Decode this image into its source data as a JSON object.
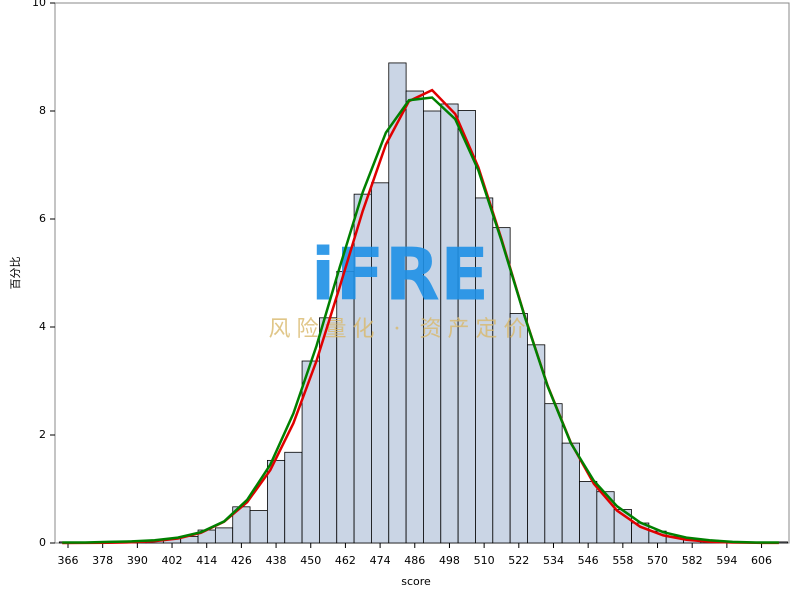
{
  "chart_data": {
    "type": "histogram",
    "xlabel": "score",
    "ylabel": "百分比",
    "watermark": "iFRE",
    "watermark_subtitle": "风险量化 · 资产定价",
    "bins": [
      363,
      369,
      375,
      381,
      387,
      393,
      399,
      405,
      411,
      417,
      423,
      429,
      435,
      441,
      447,
      453,
      459,
      465,
      471,
      477,
      483,
      489,
      495,
      501,
      507,
      513,
      519,
      525,
      531,
      537,
      543,
      549,
      555,
      561,
      567,
      573,
      579,
      585,
      591,
      597,
      603,
      609,
      615
    ],
    "values": [
      0.02,
      0.02,
      0.02,
      0.02,
      0.04,
      0.05,
      0.08,
      0.12,
      0.24,
      0.28,
      0.67,
      0.6,
      1.53,
      1.68,
      3.37,
      4.17,
      5.03,
      6.46,
      6.67,
      8.89,
      8.37,
      8.0,
      8.13,
      8.01,
      6.39,
      5.84,
      4.25,
      3.67,
      2.58,
      1.85,
      1.14,
      0.95,
      0.62,
      0.37,
      0.22,
      0.12,
      0.08,
      0.05,
      0.03,
      0.02,
      0.02,
      0.02
    ],
    "color": "#cad5e5",
    "curves": [
      {
        "color": "#e00000",
        "x": [
          364,
          372,
          380,
          388,
          396,
          404,
          412,
          420,
          428,
          436,
          444,
          452,
          460,
          468,
          476,
          484,
          492,
          500,
          508,
          516,
          524,
          532,
          540,
          548,
          556,
          564,
          572,
          580,
          588,
          596,
          604,
          612
        ],
        "values": [
          0.0004,
          0.0015,
          0.005,
          0.013,
          0.035,
          0.084,
          0.189,
          0.394,
          0.758,
          1.35,
          2.219,
          3.372,
          4.737,
          6.152,
          7.379,
          8.183,
          8.387,
          7.946,
          6.955,
          5.628,
          4.208,
          2.91,
          1.859,
          1.097,
          0.599,
          0.302,
          0.141,
          0.061,
          0.024,
          0.009,
          0.003,
          0.001
        ]
      },
      {
        "color": "#008000",
        "x": [
          364,
          372,
          380,
          388,
          396,
          404,
          412,
          420,
          428,
          436,
          444,
          452,
          460,
          468,
          476,
          484,
          492,
          500,
          508,
          516,
          524,
          532,
          540,
          548,
          556,
          564,
          572,
          580,
          588,
          596,
          604,
          612
        ],
        "values": [
          0.01,
          0.01,
          0.02,
          0.03,
          0.05,
          0.1,
          0.2,
          0.4,
          0.8,
          1.45,
          2.4,
          3.65,
          5.1,
          6.5,
          7.6,
          8.2,
          8.25,
          7.85,
          6.9,
          5.6,
          4.2,
          2.9,
          1.85,
          1.15,
          0.68,
          0.38,
          0.2,
          0.1,
          0.05,
          0.02,
          0.01,
          0.01
        ]
      }
    ],
    "xlim": [
      361.5,
      615.5
    ],
    "ylim": [
      0,
      10
    ],
    "xticks": [
      366,
      378,
      390,
      402,
      414,
      426,
      438,
      450,
      462,
      474,
      486,
      498,
      510,
      522,
      534,
      546,
      558,
      570,
      582,
      594,
      606
    ],
    "yticks": [
      0,
      2,
      4,
      6,
      8,
      10
    ]
  }
}
